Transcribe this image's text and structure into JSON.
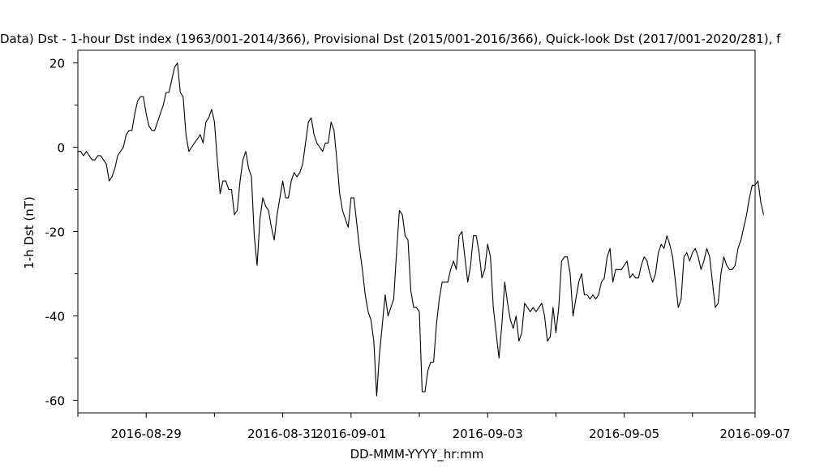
{
  "chart_data": {
    "type": "line",
    "title": "Data)  Dst - 1-hour Dst index (1963/001-2014/366), Provisional Dst (2015/001-2016/366), Quick-look Dst (2017/001-2020/281), f",
    "xlabel": "DD-MMM-YYYY_hr:mm",
    "ylabel": "1-h Dst (nT)",
    "ylim": [
      -63,
      23
    ],
    "xlim_hours": [
      0,
      238
    ],
    "x_start": "2016-08-28 00:00",
    "x_ticks": [
      {
        "label": "2016-08-29",
        "pos": 24
      },
      {
        "label": "2016-08-31",
        "pos": 72
      },
      {
        "label": "2016-09-01",
        "pos": 96
      },
      {
        "label": "2016-09-03",
        "pos": 144
      },
      {
        "label": "2016-09-05",
        "pos": 192
      },
      {
        "label": "2016-09-07",
        "pos": 240
      }
    ],
    "x_minor_ticks": [
      0,
      48,
      120,
      168,
      216
    ],
    "y_ticks": [
      20,
      0,
      -20,
      -40,
      -60
    ],
    "y_minor_ticks": [
      10,
      -10,
      -30,
      -50
    ],
    "grid": false,
    "series": [
      {
        "values": [
          -1,
          -1,
          -2,
          -1,
          -2,
          -3,
          -3,
          -2,
          -2,
          -3,
          -4,
          -8,
          -7,
          -5,
          -2,
          -1,
          0,
          3,
          4,
          4,
          8,
          11,
          12,
          12,
          8,
          5,
          4,
          4,
          6,
          8,
          10,
          13,
          13,
          16,
          19,
          20,
          13,
          12,
          3,
          -1,
          0,
          1,
          2,
          3,
          1,
          6,
          7,
          9,
          6,
          -3,
          -11,
          -8,
          -8,
          -10,
          -10,
          -16,
          -15,
          -8,
          -3,
          -1,
          -5,
          -7,
          -21,
          -28,
          -17,
          -12,
          -14,
          -15,
          -19,
          -22,
          -16,
          -12,
          -8,
          -12,
          -12,
          -8,
          -6,
          -7,
          -6,
          -4,
          1,
          6,
          7,
          3,
          1,
          0,
          -1,
          1,
          1,
          6,
          4,
          -3,
          -11,
          -15,
          -17,
          -19,
          -12,
          -12,
          -18,
          -24,
          -29,
          -35,
          -39,
          -41,
          -46,
          -59,
          -49,
          -42,
          -35,
          -40,
          -38,
          -36,
          -25,
          -15,
          -16,
          -21,
          -22,
          -34,
          -38,
          -38,
          -39,
          -58,
          -58,
          -53,
          -51,
          -51,
          -42,
          -36,
          -32,
          -32,
          -32,
          -29,
          -27,
          -29,
          -21,
          -20,
          -26,
          -32,
          -28,
          -21,
          -21,
          -25,
          -31,
          -29,
          -23,
          -26,
          -38,
          -44,
          -50,
          -42,
          -32,
          -37,
          -41,
          -43,
          -40,
          -46,
          -44,
          -37,
          -38,
          -39,
          -38,
          -39,
          -38,
          -37,
          -40,
          -46,
          -45,
          -38,
          -44,
          -38,
          -27,
          -26,
          -26,
          -30,
          -40,
          -36,
          -32,
          -30,
          -35,
          -35,
          -36,
          -35,
          -36,
          -35,
          -32,
          -31,
          -26,
          -24,
          -32,
          -29,
          -29,
          -29,
          -28,
          -27,
          -31,
          -30,
          -31,
          -31,
          -28,
          -26,
          -27,
          -30,
          -32,
          -30,
          -25,
          -23,
          -24,
          -21,
          -23,
          -26,
          -32,
          -38,
          -36,
          -26,
          -25,
          -27,
          -25,
          -24,
          -26,
          -29,
          -27,
          -24,
          -26,
          -32,
          -38,
          -37,
          -30,
          -26,
          -28,
          -29,
          -29,
          -28,
          -24,
          -22,
          -19,
          -16,
          -12,
          -9,
          -9,
          -8,
          -13,
          -16
        ]
      }
    ]
  }
}
